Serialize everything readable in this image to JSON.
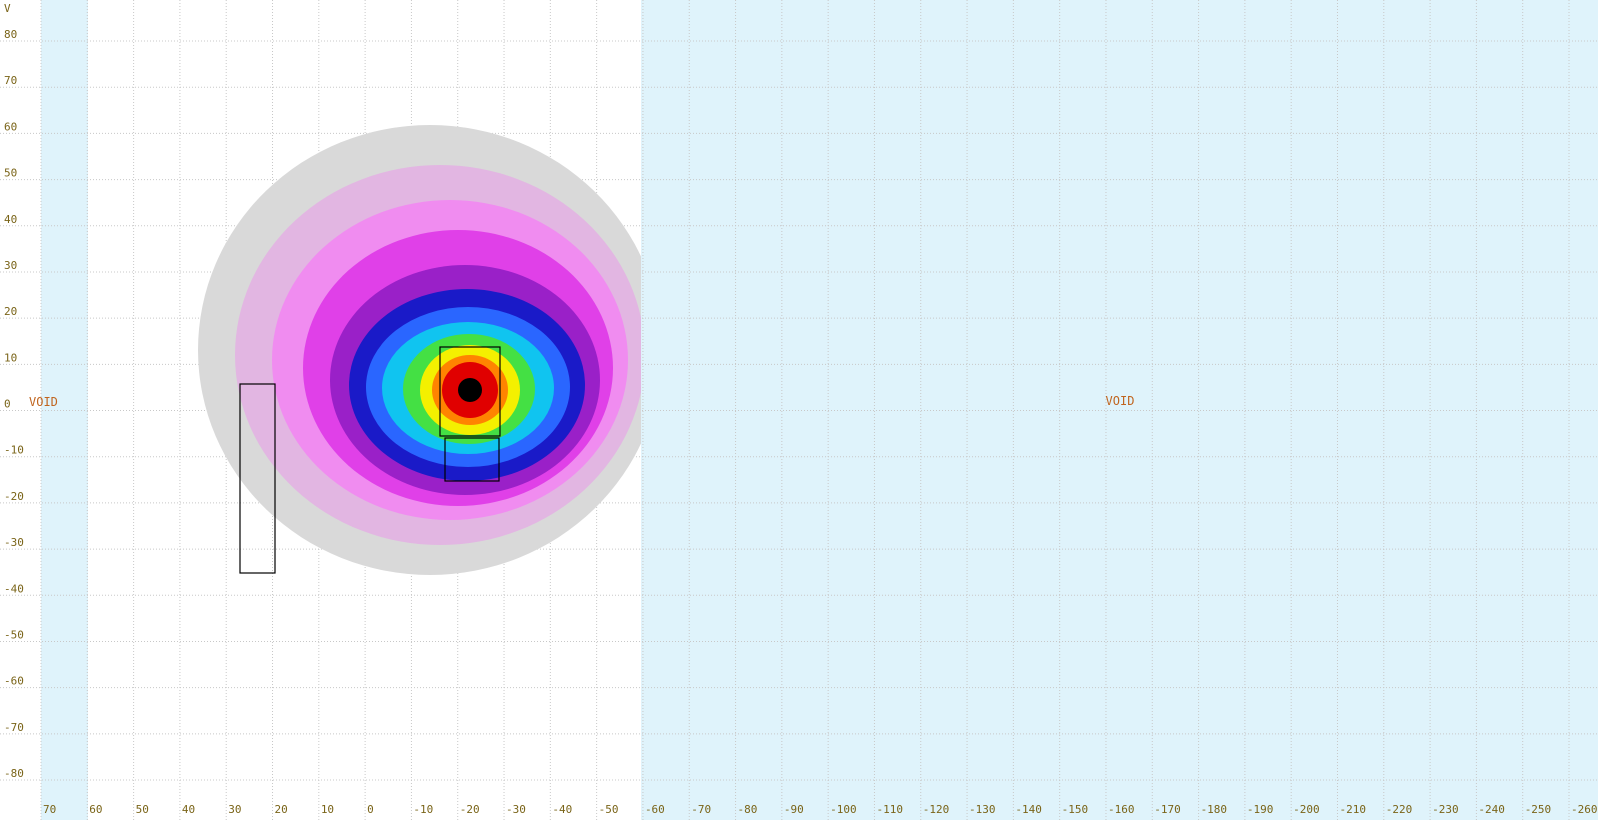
{
  "axis_label": "V",
  "void_labels": [
    "VOID",
    "VOID"
  ],
  "x_ticks": [
    70,
    60,
    50,
    40,
    30,
    20,
    10,
    0,
    -10,
    -20,
    -30,
    -40,
    -50,
    -60,
    -70,
    -80,
    -90,
    -100,
    -110,
    -120,
    -130,
    -140,
    -150,
    -160,
    -170,
    -180,
    -190,
    -200,
    -210,
    -220,
    -230,
    -240,
    -250,
    -260
  ],
  "y_ticks": [
    80,
    70,
    60,
    50,
    40,
    30,
    20,
    10,
    0,
    -10,
    -20,
    -30,
    -40,
    -50,
    -60,
    -70,
    -80
  ]
}
